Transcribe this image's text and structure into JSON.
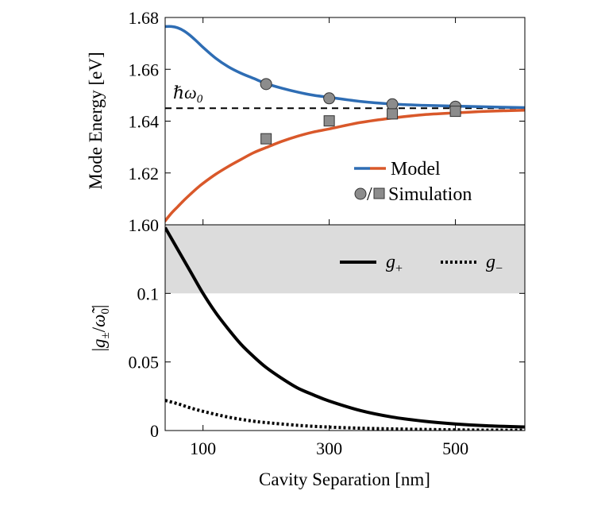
{
  "chart_data": [
    {
      "type": "line",
      "panel": "top",
      "ylabel": "Mode Energy [eV]",
      "xlim": [
        40,
        610
      ],
      "ylim": [
        1.6,
        1.68
      ],
      "yticks": [
        "1.60",
        "1.62",
        "1.64",
        "1.66",
        "1.68"
      ],
      "reference_line": {
        "label": "ℏω0",
        "value": 1.645,
        "style": "dashed",
        "color": "#000000"
      },
      "series": [
        {
          "name": "Model",
          "style": "line",
          "color": "#2E6DB4",
          "x": [
            40,
            50,
            60,
            70,
            80,
            90,
            100,
            120,
            140,
            160,
            180,
            200,
            225,
            250,
            275,
            300,
            350,
            400,
            450,
            500,
            550,
            610
          ],
          "y": [
            1.6765,
            1.6765,
            1.676,
            1.6748,
            1.673,
            1.6708,
            1.6685,
            1.6643,
            1.661,
            1.6585,
            1.6565,
            1.6545,
            1.6527,
            1.6512,
            1.65,
            1.6492,
            1.6476,
            1.6466,
            1.6461,
            1.6458,
            1.6455,
            1.6452
          ]
        },
        {
          "name": "Model",
          "style": "line",
          "color": "#D9582A",
          "x": [
            40,
            50,
            60,
            70,
            80,
            90,
            100,
            120,
            140,
            160,
            180,
            200,
            225,
            250,
            275,
            300,
            350,
            400,
            450,
            500,
            550,
            610
          ],
          "y": [
            1.6015,
            1.6045,
            1.607,
            1.6095,
            1.6118,
            1.614,
            1.616,
            1.6195,
            1.6225,
            1.6252,
            1.6278,
            1.6298,
            1.6322,
            1.6342,
            1.6358,
            1.637,
            1.6395,
            1.6412,
            1.6425,
            1.6432,
            1.6438,
            1.6442
          ]
        },
        {
          "name": "Simulation",
          "style": "circle",
          "color": "#8c8c8c",
          "x": [
            200,
            300,
            400,
            500
          ],
          "y": [
            1.6543,
            1.6488,
            1.6465,
            1.6456
          ]
        },
        {
          "name": "Simulation",
          "style": "square",
          "color": "#8c8c8c",
          "x": [
            200,
            300,
            400,
            500
          ],
          "y": [
            1.6332,
            1.6401,
            1.6428,
            1.6438
          ]
        }
      ],
      "legend": {
        "placement": "lower-right",
        "model_label": "Model",
        "simulation_label": "Simulation",
        "simulation_sep": "/"
      }
    },
    {
      "type": "line",
      "panel": "bottom",
      "xlabel": "Cavity Separation [nm]",
      "ylabel": "|g±/ω̃0|",
      "xlim": [
        40,
        610
      ],
      "xticks": [
        100,
        300,
        500
      ],
      "xtick_labels": [
        "100",
        "300",
        "500"
      ],
      "ylim": [
        0,
        0.15
      ],
      "yticks": [
        "0",
        "0.05",
        "0.1"
      ],
      "shaded_band": {
        "from": 0.1,
        "to": 0.15,
        "color": "#dcdcdc"
      },
      "series": [
        {
          "name": "g+",
          "style": "solid",
          "color": "#000000",
          "x": [
            40,
            60,
            80,
            100,
            120,
            140,
            160,
            180,
            200,
            225,
            250,
            275,
            300,
            350,
            400,
            450,
            500,
            550,
            610
          ],
          "y": [
            0.148,
            0.132,
            0.116,
            0.1,
            0.086,
            0.074,
            0.063,
            0.054,
            0.046,
            0.038,
            0.031,
            0.026,
            0.0215,
            0.0145,
            0.0098,
            0.0068,
            0.0048,
            0.0035,
            0.0026
          ]
        },
        {
          "name": "g−",
          "style": "dotted",
          "color": "#000000",
          "x": [
            40,
            60,
            80,
            100,
            120,
            140,
            160,
            180,
            200,
            250,
            300,
            350,
            400,
            450,
            500,
            550,
            610
          ],
          "y": [
            0.022,
            0.0195,
            0.0165,
            0.014,
            0.0118,
            0.0098,
            0.0082,
            0.0068,
            0.0058,
            0.0038,
            0.0025,
            0.0017,
            0.0012,
            0.0008,
            0.0005,
            0.0003,
            0.0002
          ]
        }
      ],
      "legend": {
        "placement": "top-right"
      }
    }
  ]
}
